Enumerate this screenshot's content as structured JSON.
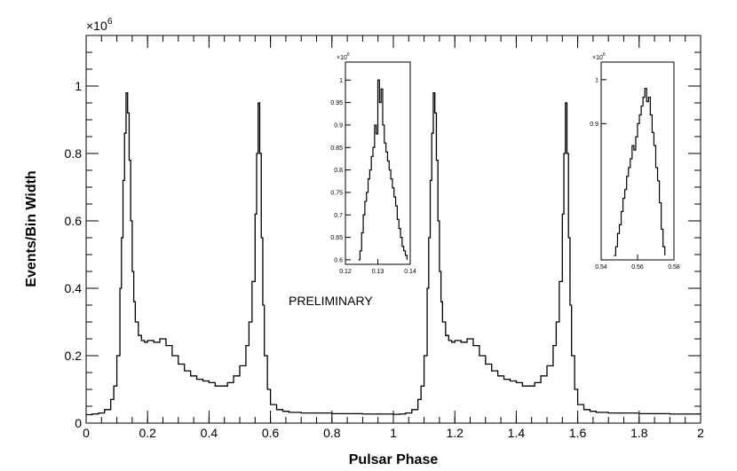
{
  "chart_data": [
    {
      "type": "line",
      "xlabel": "Pulsar Phase",
      "ylabel": "Events/Bin Width",
      "y_multiplier_label": "×10",
      "y_multiplier_exp": "6",
      "xlim": [
        0,
        2
      ],
      "ylim": [
        0,
        1.15
      ],
      "x_ticks": [
        0,
        0.2,
        0.4,
        0.6,
        0.8,
        1,
        1.2,
        1.4,
        1.6,
        1.8,
        2
      ],
      "x_tick_labels": [
        "0",
        "0.2",
        "0.4",
        "0.6",
        "0.8",
        "1",
        "1.2",
        "1.4",
        "1.6",
        "1.8",
        "2"
      ],
      "y_ticks": [
        0,
        0.2,
        0.4,
        0.6,
        0.8,
        1
      ],
      "y_tick_labels": [
        "0",
        "0.2",
        "0.4",
        "0.6",
        "0.8",
        "1"
      ],
      "annotation": "PRELIMINARY",
      "series": [
        {
          "x": [
            0,
            0.02,
            0.04,
            0.06,
            0.08,
            0.09,
            0.1,
            0.11,
            0.115,
            0.12,
            0.125,
            0.13,
            0.135,
            0.14,
            0.145,
            0.15,
            0.155,
            0.16,
            0.17,
            0.18,
            0.19,
            0.2,
            0.22,
            0.24,
            0.26,
            0.28,
            0.3,
            0.32,
            0.34,
            0.36,
            0.38,
            0.4,
            0.42,
            0.44,
            0.46,
            0.48,
            0.5,
            0.52,
            0.53,
            0.54,
            0.55,
            0.555,
            0.56,
            0.565,
            0.57,
            0.575,
            0.58,
            0.59,
            0.6,
            0.62,
            0.64,
            0.66,
            0.7,
            0.8,
            0.9,
            1.0,
            1.02,
            1.04,
            1.06,
            1.08,
            1.09,
            1.1,
            1.11,
            1.115,
            1.12,
            1.125,
            1.13,
            1.135,
            1.14,
            1.145,
            1.15,
            1.155,
            1.16,
            1.17,
            1.18,
            1.19,
            1.2,
            1.22,
            1.24,
            1.26,
            1.28,
            1.3,
            1.32,
            1.34,
            1.36,
            1.38,
            1.4,
            1.42,
            1.44,
            1.46,
            1.48,
            1.5,
            1.52,
            1.53,
            1.54,
            1.55,
            1.555,
            1.56,
            1.565,
            1.57,
            1.575,
            1.58,
            1.59,
            1.6,
            1.62,
            1.64,
            1.66,
            1.7,
            1.8,
            1.9,
            2.0
          ],
          "y": [
            0.025,
            0.027,
            0.03,
            0.04,
            0.07,
            0.11,
            0.2,
            0.4,
            0.55,
            0.72,
            0.86,
            0.98,
            0.92,
            0.78,
            0.6,
            0.45,
            0.36,
            0.3,
            0.26,
            0.245,
            0.24,
            0.245,
            0.24,
            0.25,
            0.23,
            0.2,
            0.175,
            0.155,
            0.14,
            0.13,
            0.125,
            0.12,
            0.11,
            0.11,
            0.12,
            0.14,
            0.17,
            0.23,
            0.3,
            0.42,
            0.62,
            0.8,
            0.95,
            0.8,
            0.55,
            0.35,
            0.2,
            0.1,
            0.055,
            0.04,
            0.035,
            0.032,
            0.03,
            0.028,
            0.027,
            0.026,
            0.027,
            0.03,
            0.04,
            0.07,
            0.11,
            0.2,
            0.4,
            0.55,
            0.72,
            0.86,
            0.98,
            0.92,
            0.78,
            0.6,
            0.45,
            0.36,
            0.3,
            0.26,
            0.245,
            0.24,
            0.245,
            0.24,
            0.25,
            0.23,
            0.2,
            0.175,
            0.155,
            0.14,
            0.13,
            0.125,
            0.12,
            0.11,
            0.11,
            0.12,
            0.14,
            0.17,
            0.23,
            0.3,
            0.42,
            0.62,
            0.8,
            0.95,
            0.8,
            0.55,
            0.35,
            0.2,
            0.1,
            0.055,
            0.04,
            0.035,
            0.032,
            0.03,
            0.028,
            0.027,
            0.026
          ]
        }
      ]
    },
    {
      "type": "line",
      "y_multiplier_label": "×10",
      "y_multiplier_exp": "6",
      "xlim": [
        0.12,
        0.14
      ],
      "ylim": [
        0.59,
        1.04
      ],
      "x_ticks": [
        0.12,
        0.13,
        0.14
      ],
      "x_tick_labels": [
        "0.12",
        "0.13",
        "0.14"
      ],
      "y_ticks": [
        0.6,
        0.65,
        0.7,
        0.75,
        0.8,
        0.85,
        0.9,
        0.95,
        1
      ],
      "y_tick_labels": [
        "0.6",
        "0.65",
        "0.7",
        "0.75",
        "0.8",
        "0.85",
        "0.9",
        "0.95",
        "1"
      ],
      "series": [
        {
          "x": [
            0.124,
            0.1245,
            0.125,
            0.1255,
            0.126,
            0.1265,
            0.127,
            0.1275,
            0.128,
            0.1285,
            0.129,
            0.1295,
            0.13,
            0.1305,
            0.131,
            0.1315,
            0.132,
            0.1325,
            0.133,
            0.1335,
            0.134,
            0.1345,
            0.135,
            0.1355,
            0.136,
            0.1365,
            0.137,
            0.1375,
            0.138,
            0.1385,
            0.139
          ],
          "y": [
            0.6,
            0.62,
            0.66,
            0.7,
            0.73,
            0.75,
            0.78,
            0.8,
            0.83,
            0.85,
            0.9,
            0.88,
            1.0,
            0.95,
            0.98,
            0.9,
            0.86,
            0.84,
            0.82,
            0.8,
            0.78,
            0.76,
            0.74,
            0.72,
            0.69,
            0.67,
            0.65,
            0.63,
            0.62,
            0.61,
            0.6
          ]
        }
      ]
    },
    {
      "type": "line",
      "y_multiplier_label": "×10",
      "y_multiplier_exp": "6",
      "xlim": [
        0.54,
        0.58
      ],
      "ylim": [
        0.59,
        1.04
      ],
      "x_ticks": [
        0.54,
        0.56,
        0.58
      ],
      "x_tick_labels": [
        "0.54",
        "0.56",
        "0.58"
      ],
      "y_ticks": [
        0.9,
        1
      ],
      "y_tick_labels": [
        "0.9",
        "1"
      ],
      "series": [
        {
          "x": [
            0.547,
            0.548,
            0.549,
            0.55,
            0.551,
            0.552,
            0.553,
            0.554,
            0.555,
            0.556,
            0.557,
            0.558,
            0.559,
            0.56,
            0.561,
            0.562,
            0.563,
            0.564,
            0.565,
            0.566,
            0.567,
            0.568,
            0.569,
            0.57,
            0.571,
            0.572,
            0.573,
            0.574,
            0.575
          ],
          "y": [
            0.6,
            0.62,
            0.65,
            0.67,
            0.7,
            0.73,
            0.75,
            0.78,
            0.8,
            0.82,
            0.85,
            0.84,
            0.87,
            0.9,
            0.92,
            0.94,
            0.96,
            0.98,
            0.95,
            0.96,
            0.92,
            0.88,
            0.85,
            0.8,
            0.77,
            0.72,
            0.66,
            0.62,
            0.6
          ]
        }
      ]
    }
  ]
}
